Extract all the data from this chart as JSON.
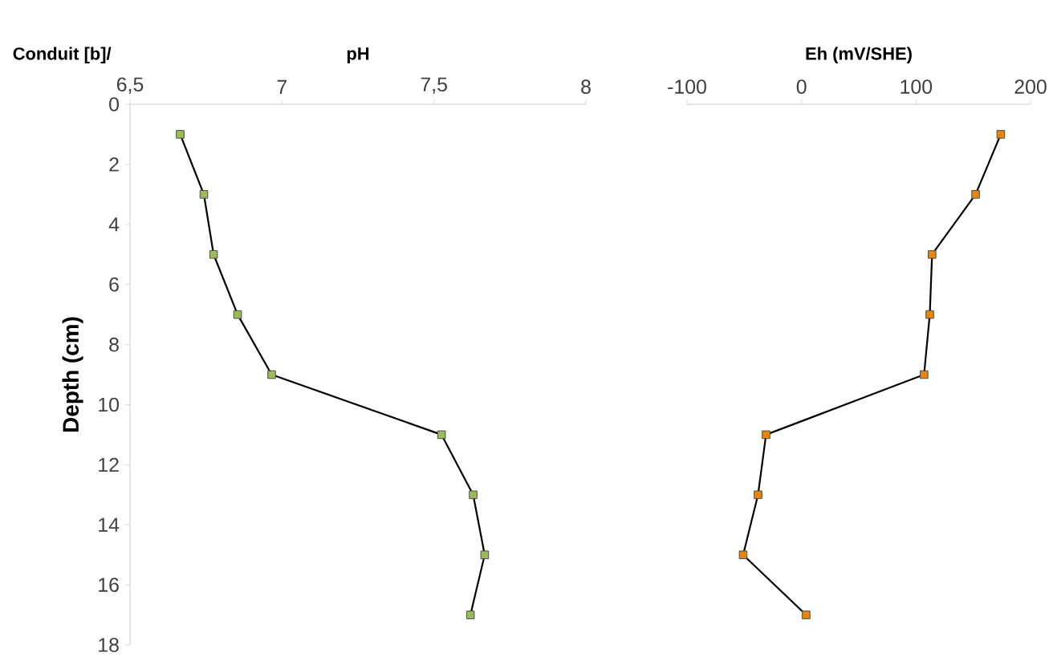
{
  "chart_data": [
    {
      "type": "line",
      "xlabel": "pH",
      "ylabel": "Depth  (cm)",
      "annotations": [
        "Conduit [b]/"
      ],
      "series": [
        {
          "color": "#9bbb59",
          "x": [
            6.665,
            6.743,
            6.775,
            6.854,
            6.966,
            7.525,
            7.629,
            7.667,
            7.62
          ],
          "values": [
            1,
            3,
            5,
            7,
            9,
            11,
            13,
            15,
            17
          ]
        }
      ],
      "xlim": [
        6.5,
        8
      ],
      "xticks": [
        {
          "value": 6.5,
          "label": "6,5"
        },
        7,
        {
          "value": 7.5,
          "label": "7,5"
        },
        8
      ],
      "ylim": [
        18,
        0
      ],
      "yticks": [
        0,
        2,
        4,
        6,
        8,
        10,
        12,
        14,
        16,
        18
      ],
      "grid": false,
      "marker": "square",
      "line_style": "solid"
    },
    {
      "type": "line",
      "xlabel": "Eh (mV/SHE)",
      "series": [
        {
          "color": "#e8850c",
          "x": [
            174,
            152,
            114,
            112,
            107,
            -31,
            -38,
            -51,
            4
          ],
          "values": [
            1,
            3,
            5,
            7,
            9,
            11,
            13,
            15,
            17
          ]
        }
      ],
      "xlim": [
        -100,
        200
      ],
      "xticks": [
        -100,
        0,
        100,
        200
      ],
      "ylim": [
        18,
        0
      ],
      "tick_labels": "x",
      "grid": false,
      "marker": "square",
      "line_style": "solid"
    }
  ]
}
